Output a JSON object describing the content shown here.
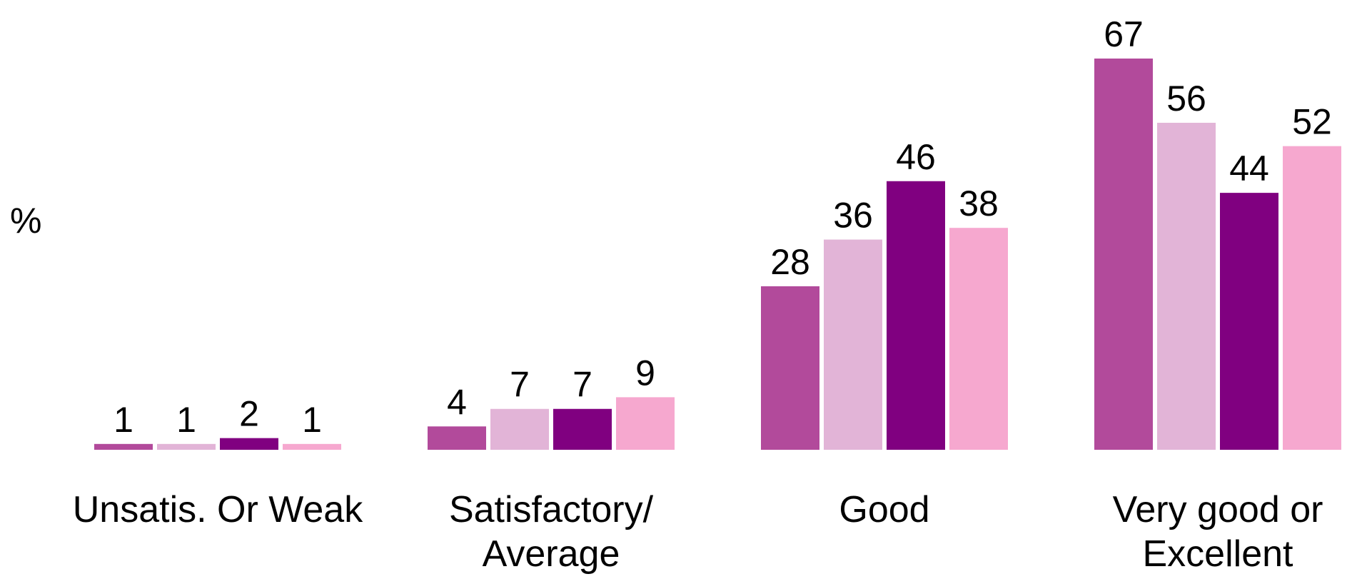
{
  "chart_data": {
    "type": "bar",
    "ylabel": "%",
    "categories": [
      [
        "Unsatis. Or Weak"
      ],
      [
        "Satisfactory/",
        "Average"
      ],
      [
        "Good"
      ],
      [
        "Very good or",
        "Excellent"
      ]
    ],
    "series": [
      {
        "color": "#b24a9b",
        "values": [
          1,
          4,
          28,
          67
        ]
      },
      {
        "color": "#e2b4d7",
        "values": [
          1,
          7,
          36,
          56
        ]
      },
      {
        "color": "#800080",
        "values": [
          2,
          7,
          46,
          44
        ]
      },
      {
        "color": "#f6a8cf",
        "values": [
          1,
          9,
          38,
          52
        ]
      }
    ],
    "ylim": [
      0,
      67
    ],
    "grid": false,
    "legend": "none"
  }
}
